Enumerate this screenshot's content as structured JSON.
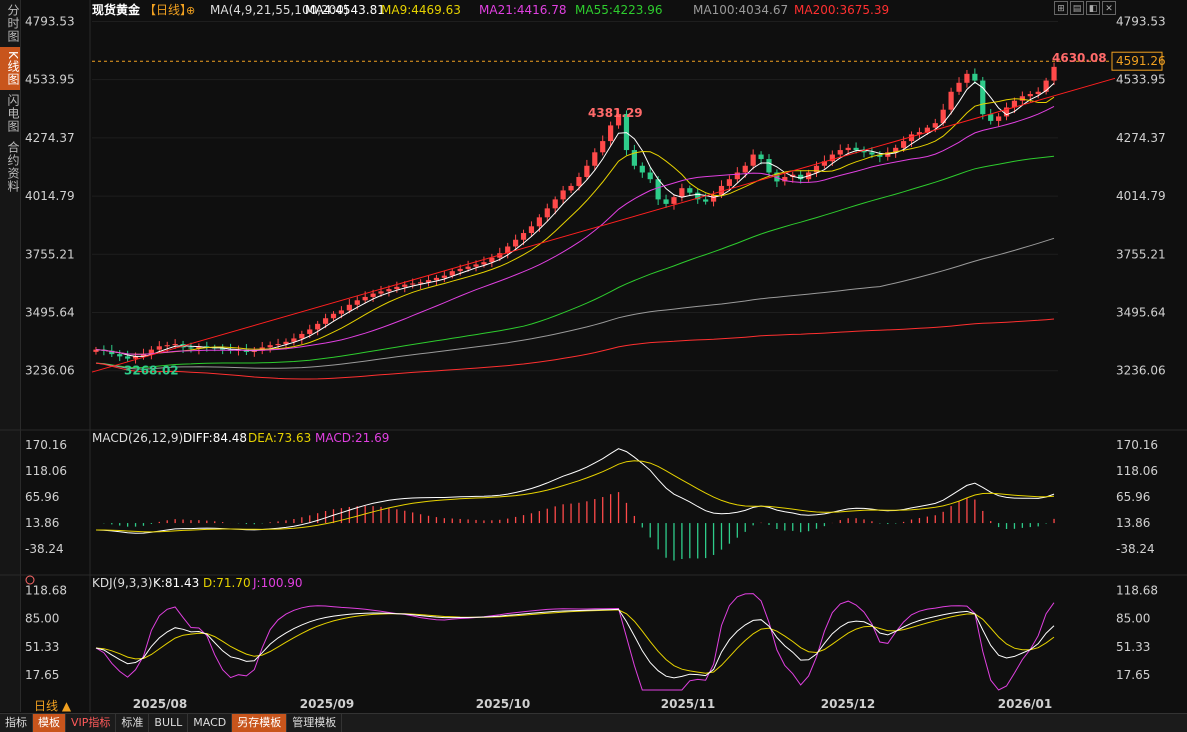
{
  "side_tabs": [
    "分时图",
    "K线图",
    "闪电图",
    "合约资料"
  ],
  "active_tab_index": 1,
  "instrument": "现货黄金",
  "period_tag": "【日线】",
  "ma_header": {
    "label": "MA(4,9,21,55,100,200)",
    "items": [
      {
        "text": "MA4:4543.81",
        "color": "#ffffff"
      },
      {
        "text": "MA9:4469.63",
        "color": "#e6d200"
      },
      {
        "text": "MA21:4416.78",
        "color": "#e040e0"
      },
      {
        "text": "MA55:4223.96",
        "color": "#2ecc2e"
      },
      {
        "text": "MA100:4034.67",
        "color": "#9a9a9a"
      },
      {
        "text": "MA200:3675.39",
        "color": "#ff3030"
      }
    ]
  },
  "price_axis": [
    "4793.53",
    "4533.95",
    "4274.37",
    "4014.79",
    "3755.21",
    "3495.64",
    "3236.06"
  ],
  "current_price": "4591.26",
  "high_label": "4630.08",
  "peak_label": "4381.29",
  "low_label": "3268.02",
  "macd_header": {
    "label": "MACD(26,12,9)",
    "diff": "DIFF:84.48",
    "dea": "DEA:73.63",
    "macd": "MACD:21.69"
  },
  "macd_axis": [
    "170.16",
    "118.06",
    "65.96",
    "13.86",
    "-38.24"
  ],
  "kdj_header": {
    "label": "KDJ(9,3,3)",
    "k": "K:81.43",
    "d": "D:71.70",
    "j": "J:100.90"
  },
  "kdj_axis": [
    "118.68",
    "85.00",
    "51.33",
    "17.65"
  ],
  "x_axis": [
    "2025/08",
    "2025/09",
    "2025/10",
    "2025/11",
    "2025/12",
    "2026/01"
  ],
  "period_label": "日线",
  "bottom_tabs": [
    "指标",
    "模板",
    "VIP指标",
    "标准",
    "BULL",
    "MACD",
    "另存模板",
    "管理模板"
  ],
  "colors": {
    "up": "#ff4a4a",
    "down": "#2ecc8a",
    "bg": "#0f0f0f",
    "grid": "#2a2a2a",
    "axis_text": "#d0d0d0"
  },
  "chart_data": {
    "type": "candlestick",
    "ylim": [
      3150,
      4800
    ],
    "x": [
      "2025/08",
      "2025/09",
      "2025/10",
      "2025/11",
      "2025/12",
      "2026/01"
    ],
    "close_series": [
      3330,
      3325,
      3310,
      3300,
      3290,
      3300,
      3310,
      3330,
      3345,
      3350,
      3355,
      3340,
      3335,
      3345,
      3340,
      3335,
      3330,
      3325,
      3330,
      3320,
      3325,
      3340,
      3350,
      3355,
      3365,
      3380,
      3400,
      3420,
      3445,
      3470,
      3490,
      3505,
      3530,
      3550,
      3565,
      3580,
      3590,
      3600,
      3610,
      3620,
      3625,
      3630,
      3640,
      3650,
      3660,
      3680,
      3690,
      3700,
      3710,
      3720,
      3740,
      3760,
      3790,
      3820,
      3850,
      3880,
      3920,
      3960,
      4000,
      4040,
      4060,
      4100,
      4150,
      4210,
      4260,
      4330,
      4381,
      4220,
      4150,
      4120,
      4090,
      4000,
      3980,
      4010,
      4050,
      4030,
      4000,
      3990,
      4020,
      4060,
      4090,
      4120,
      4150,
      4200,
      4180,
      4120,
      4080,
      4100,
      4110,
      4090,
      4120,
      4150,
      4170,
      4200,
      4220,
      4230,
      4220,
      4210,
      4200,
      4190,
      4210,
      4230,
      4260,
      4290,
      4300,
      4320,
      4340,
      4400,
      4480,
      4520,
      4560,
      4530,
      4380,
      4350,
      4370,
      4410,
      4440,
      4460,
      4470,
      4480,
      4530,
      4591
    ],
    "ma": [
      {
        "name": "MA4",
        "color": "#ffffff"
      },
      {
        "name": "MA9",
        "color": "#e6d200"
      },
      {
        "name": "MA21",
        "color": "#e040e0"
      },
      {
        "name": "MA55",
        "color": "#2ecc2e"
      },
      {
        "name": "MA100",
        "color": "#9a9a9a"
      },
      {
        "name": "MA200",
        "color": "#ff3030"
      }
    ],
    "macd": {
      "ylim": [
        -60,
        180
      ]
    },
    "kdj": {
      "ylim": [
        0,
        125
      ]
    }
  }
}
